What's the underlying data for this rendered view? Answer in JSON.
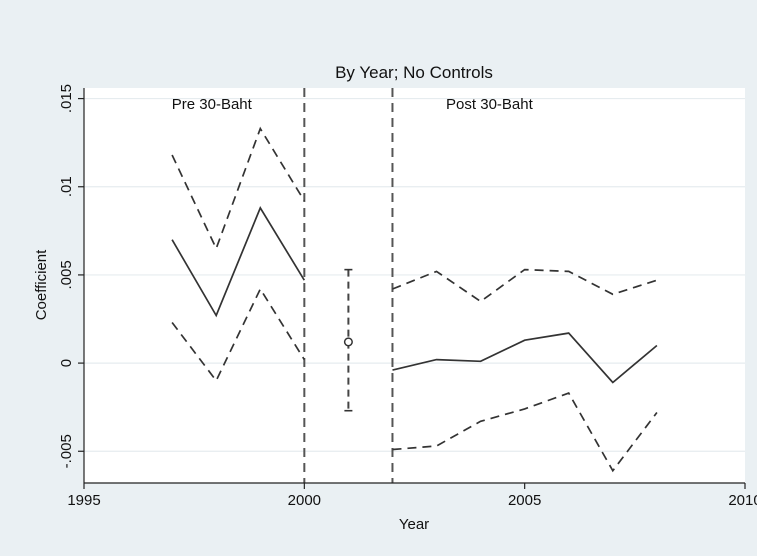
{
  "chart_data": {
    "type": "line",
    "title": "By Year; No Controls",
    "xlabel": "Year",
    "ylabel": "Coefficient",
    "xlim": [
      1995,
      2010
    ],
    "ylim": [
      -0.0068,
      0.0156
    ],
    "xticks": [
      1995,
      2000,
      2005,
      2010
    ],
    "yticks": [
      -0.005,
      0,
      0.005,
      0.01,
      0.015
    ],
    "xtick_labels": [
      "1995",
      "2000",
      "2005",
      "2010"
    ],
    "ytick_labels": [
      "-.005",
      "0",
      ".005",
      ".01",
      ".015"
    ],
    "grid": true,
    "vlines": [
      2000,
      2002
    ],
    "annotations": [
      {
        "text": "Pre 30-Baht",
        "x": 1997.9,
        "y": 0.0144
      },
      {
        "text": "Post 30-Baht",
        "x": 2004.2,
        "y": 0.0144
      }
    ],
    "pre": {
      "x": [
        1997,
        1998,
        1999,
        2000
      ],
      "estimate": [
        0.007,
        0.0027,
        0.0088,
        0.0047
      ],
      "upper": [
        0.0118,
        0.0065,
        0.0133,
        0.0092
      ],
      "lower": [
        0.0023,
        -0.001,
        0.0042,
        0.0002
      ]
    },
    "transition": {
      "x": 2001,
      "estimate": 0.0012,
      "upper": 0.0053,
      "lower": -0.0027
    },
    "post": {
      "x": [
        2002,
        2003,
        2004,
        2005,
        2006,
        2007,
        2008
      ],
      "estimate": [
        -0.0004,
        0.0002,
        0.0001,
        0.0013,
        0.0017,
        -0.0011,
        0.001
      ],
      "upper": [
        0.0042,
        0.0052,
        0.0035,
        0.0053,
        0.0052,
        0.0039,
        0.0047
      ],
      "lower": [
        -0.0049,
        -0.0047,
        -0.0033,
        -0.0026,
        -0.0017,
        -0.0061,
        -0.0028
      ]
    }
  }
}
